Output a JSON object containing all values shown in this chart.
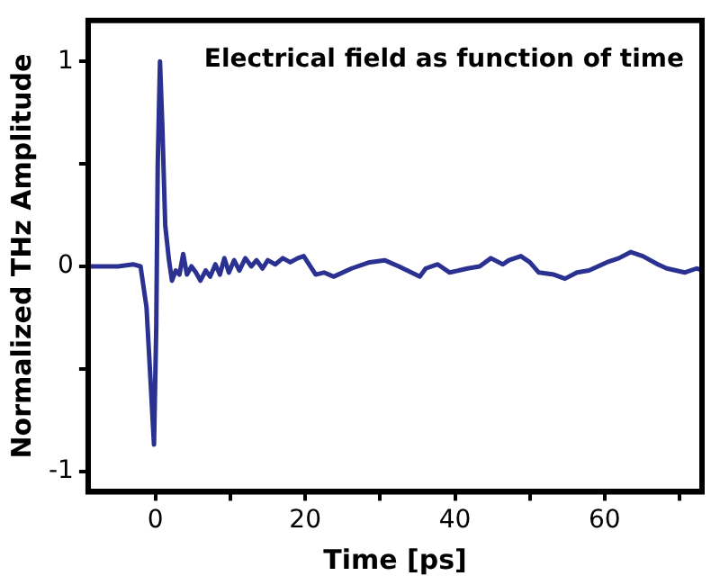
{
  "chart_data": {
    "type": "line",
    "title": "Electrical field as function of time",
    "xlabel": "Time [ps]",
    "ylabel": "Normalized THz Amplitude",
    "xlim": [
      -9,
      73
    ],
    "xticks": [
      0,
      {
        "value": 10,
        "label": null
      },
      20,
      {
        "value": 30,
        "label": null
      },
      40,
      {
        "value": 50,
        "label": null
      },
      60,
      {
        "value": 70,
        "label": null
      }
    ],
    "ylim": [
      -1.1,
      1.2
    ],
    "yticks": [
      -1,
      {
        "value": -0.5,
        "label": null
      },
      0,
      {
        "value": 0.5,
        "label": null
      },
      1
    ],
    "grid": false,
    "legend": false,
    "marker": "none",
    "line_style": "solid",
    "series": [
      {
        "color": "#2b3190",
        "x": [
          -9,
          -5,
          -3,
          -2,
          -1.2,
          -0.6,
          -0.2,
          0.1,
          0.3,
          0.6,
          0.9,
          1.3,
          1.8,
          2.2,
          2.7,
          3.2,
          3.7,
          4.2,
          4.8,
          5.4,
          6,
          6.7,
          7.3,
          8,
          8.6,
          9.2,
          9.8,
          10.5,
          11.2,
          12,
          12.8,
          13.5,
          14.3,
          15,
          16,
          17,
          18,
          19,
          19.8,
          21.4,
          22.5,
          23.8,
          26.2,
          28.6,
          30.6,
          32.5,
          35.3,
          36.1,
          37.7,
          39.3,
          41.7,
          43.3,
          44.8,
          46.4,
          47.2,
          48.8,
          50,
          51.2,
          53.2,
          54.7,
          56.3,
          57.9,
          60.3,
          61.9,
          63.5,
          65.1,
          67.1,
          68.3,
          70.7,
          72.3,
          73
        ],
        "values": [
          0,
          0,
          0.01,
          0,
          -0.2,
          -0.6,
          -0.87,
          -0.3,
          0.5,
          1.0,
          0.7,
          0.2,
          0.03,
          -0.07,
          -0.02,
          -0.04,
          0.06,
          -0.04,
          0,
          -0.03,
          -0.07,
          -0.02,
          -0.05,
          0.01,
          -0.04,
          0.04,
          -0.03,
          0.03,
          -0.02,
          0.04,
          0,
          0.03,
          -0.01,
          0.03,
          0.01,
          0.04,
          0.02,
          0.04,
          0.05,
          -0.04,
          -0.03,
          -0.05,
          -0.01,
          0.02,
          0.03,
          0,
          -0.05,
          -0.01,
          0.01,
          -0.03,
          -0.01,
          0,
          0.04,
          0.01,
          0.03,
          0.05,
          0.02,
          -0.03,
          -0.04,
          -0.06,
          -0.03,
          -0.02,
          0.02,
          0.04,
          0.07,
          0.05,
          0.01,
          -0.01,
          -0.03,
          -0.01,
          -0.02
        ]
      }
    ]
  }
}
